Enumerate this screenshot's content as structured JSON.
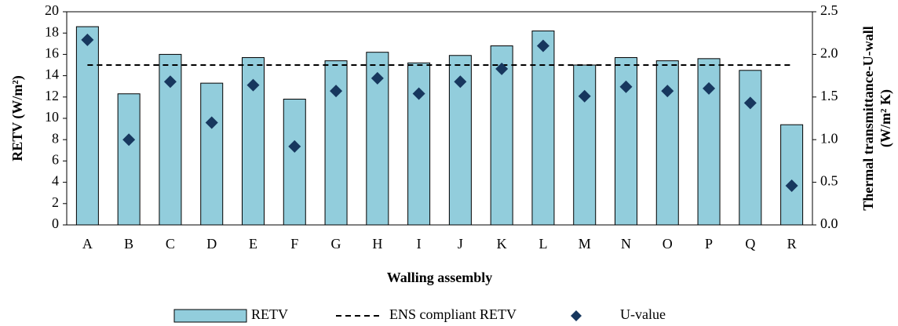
{
  "chart_data": {
    "type": "bar",
    "xlabel": "Walling assembly",
    "ylabel": "RETV (W/m²)",
    "y2label": [
      "Thermal transmittance-U-wall",
      "(W/m² K)"
    ],
    "categories": [
      "A",
      "B",
      "C",
      "D",
      "E",
      "F",
      "G",
      "H",
      "I",
      "J",
      "K",
      "L",
      "M",
      "N",
      "O",
      "P",
      "Q",
      "R"
    ],
    "series": [
      {
        "name": "RETV",
        "type": "bar",
        "color": "#92cddc",
        "values": [
          18.6,
          12.3,
          16.0,
          13.3,
          15.7,
          11.8,
          15.4,
          16.2,
          15.2,
          15.9,
          16.8,
          18.2,
          15.0,
          15.7,
          15.4,
          15.6,
          14.5,
          9.4
        ]
      },
      {
        "name": "ENS compliant RETV",
        "type": "line",
        "color": "#000000",
        "dashed": true,
        "values": [
          15,
          15,
          15,
          15,
          15,
          15,
          15,
          15,
          15,
          15,
          15,
          15,
          15,
          15,
          15,
          15,
          15,
          15
        ]
      },
      {
        "name": "U-value",
        "type": "scatter",
        "axis": "y2",
        "color": "#17375e",
        "values": [
          2.17,
          1.0,
          1.68,
          1.2,
          1.64,
          0.92,
          1.57,
          1.72,
          1.54,
          1.68,
          1.83,
          2.1,
          1.51,
          1.62,
          1.57,
          1.6,
          1.43,
          0.46
        ]
      }
    ],
    "ylim": [
      0,
      20
    ],
    "yticks": [
      0,
      2,
      4,
      6,
      8,
      10,
      12,
      14,
      16,
      18,
      20
    ],
    "y2lim": [
      0,
      2.5
    ],
    "y2ticks": [
      {
        "value": 0,
        "label": "0.0"
      },
      {
        "value": 0.5,
        "label": "0.5"
      },
      {
        "value": 1,
        "label": "1.0"
      },
      {
        "value": 1.5,
        "label": "1.5"
      },
      {
        "value": 2,
        "label": "2.0"
      },
      {
        "value": 2.5,
        "label": "2.5"
      }
    ],
    "legend": "bottom"
  }
}
